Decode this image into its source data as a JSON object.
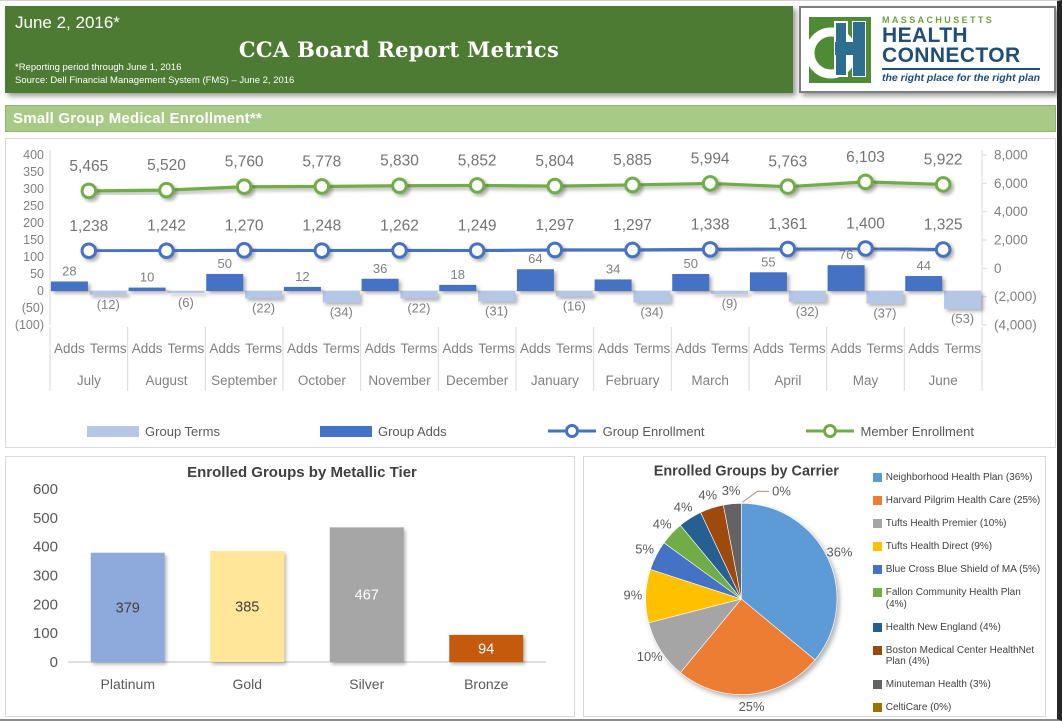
{
  "header": {
    "date": "June 2, 2016*",
    "title": "CCA Board Report Metrics",
    "footnotes": [
      "*Reporting period through June 1, 2016",
      "Source: Dell Financial Management System (FMS) – June 2, 2016"
    ],
    "logo": {
      "region": "MASSACHUSETTS",
      "line1": "HEALTH",
      "line2": "CONNECTOR",
      "tagline": "the right place for the right plan"
    }
  },
  "section_title": "Small Group Medical Enrollment**",
  "colors": {
    "header_green": "#4E7B33",
    "band_green": "#A7CB87",
    "accent_blue": "#4472C4",
    "accent_light_blue": "#B4C7E7",
    "accent_green": "#70AD47",
    "label_gray": "#7F7F7F"
  },
  "chart_data": [
    {
      "name": "small-group-medical-enrollment",
      "type": "combo-bar-line",
      "categories": [
        "July",
        "August",
        "September",
        "October",
        "November",
        "December",
        "January",
        "February",
        "March",
        "April",
        "May",
        "June"
      ],
      "sublabels": [
        "Adds",
        "Terms"
      ],
      "series": [
        {
          "name": "Group Terms",
          "type": "bar",
          "axis": "left",
          "color": "#B4C7E7",
          "values": [
            -12,
            -6,
            -22,
            -34,
            -22,
            -31,
            -16,
            -34,
            -9,
            -32,
            -37,
            -53
          ]
        },
        {
          "name": "Group Adds",
          "type": "bar",
          "axis": "left",
          "color": "#4472C4",
          "values": [
            28,
            10,
            50,
            12,
            36,
            18,
            64,
            34,
            50,
            55,
            76,
            44
          ]
        },
        {
          "name": "Group Enrollment",
          "type": "line",
          "axis": "right",
          "color": "#4472C4",
          "values": [
            1238,
            1242,
            1270,
            1248,
            1262,
            1249,
            1297,
            1297,
            1338,
            1361,
            1400,
            1325
          ]
        },
        {
          "name": "Member Enrollment",
          "type": "line",
          "axis": "right",
          "color": "#70AD47",
          "values": [
            5465,
            5520,
            5760,
            5778,
            5830,
            5852,
            5804,
            5885,
            5994,
            5763,
            6103,
            5922
          ]
        }
      ],
      "left_axis": {
        "min": -100,
        "max": 400,
        "step": 50
      },
      "right_axis": {
        "min": -4000,
        "max": 8000,
        "step": 2000
      },
      "legend_position": "bottom"
    },
    {
      "name": "enrolled-groups-by-metallic-tier",
      "type": "bar",
      "title": "Enrolled Groups by Metallic Tier",
      "categories": [
        "Platinum",
        "Gold",
        "Silver",
        "Bronze"
      ],
      "values": [
        379,
        385,
        467,
        94
      ],
      "colors": [
        "#8EA9DB",
        "#FFE699",
        "#A6A6A6",
        "#C55A11"
      ],
      "label_colors": [
        "#404040",
        "#404040",
        "#FFFFFF",
        "#FFFFFF"
      ],
      "ylim": [
        0,
        600
      ],
      "step": 100,
      "grid": false
    },
    {
      "name": "enrolled-groups-by-carrier",
      "type": "pie",
      "title": "Enrolled Groups by Carrier",
      "legend_position": "right",
      "slices": [
        {
          "label": "Neighborhood Health Plan",
          "pct": 36,
          "color": "#5B9BD5"
        },
        {
          "label": "Harvard Pilgrim Health Care",
          "pct": 25,
          "color": "#ED7D31"
        },
        {
          "label": "Tufts Health Premier",
          "pct": 10,
          "color": "#A5A5A5"
        },
        {
          "label": "Tufts Health Direct",
          "pct": 9,
          "color": "#FFC000"
        },
        {
          "label": "Blue Cross Blue Shield of MA",
          "pct": 5,
          "color": "#4472C4"
        },
        {
          "label": "Fallon Community Health Plan",
          "pct": 4,
          "color": "#70AD47"
        },
        {
          "label": "Health New England",
          "pct": 4,
          "color": "#255E91"
        },
        {
          "label": "Boston Medical Center HealthNet Plan",
          "pct": 4,
          "color": "#9E480E"
        },
        {
          "label": "Minuteman Health",
          "pct": 3,
          "color": "#636363"
        },
        {
          "label": "CeltiCare",
          "pct": 0,
          "color": "#997300"
        }
      ]
    }
  ]
}
